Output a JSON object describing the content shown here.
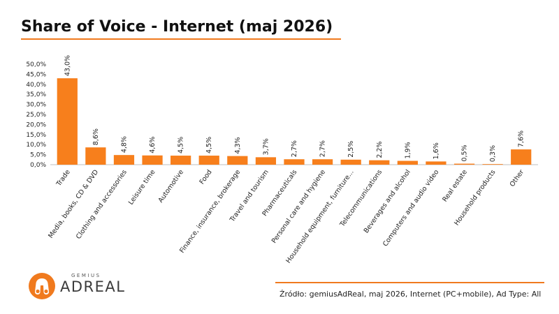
{
  "header": {
    "title": "Share of Voice - Internet (maj 2026)"
  },
  "chart_data": {
    "type": "bar",
    "categories": [
      "Trade",
      "Media, books, CD & DVD",
      "Clothing and accessories",
      "Leisure time",
      "Automotive",
      "Food",
      "Finance, insurance, brokerage",
      "Travel and tourism",
      "Pharmaceuticals",
      "Personal care and hygiene",
      "Household equipment, furniture...",
      "Telecommunications",
      "Beverages and alcohol",
      "Computers and audio video",
      "Real estate",
      "Household products",
      "Other"
    ],
    "values": [
      43.0,
      8.6,
      4.8,
      4.6,
      4.5,
      4.5,
      4.3,
      3.7,
      2.7,
      2.7,
      2.5,
      2.2,
      1.9,
      1.6,
      0.5,
      0.3,
      7.6
    ],
    "value_labels": [
      "43,0%",
      "8,6%",
      "4,8%",
      "4,6%",
      "4,5%",
      "4,5%",
      "4,3%",
      "3,7%",
      "2,7%",
      "2,7%",
      "2,5%",
      "2,2%",
      "1,9%",
      "1,6%",
      "0,5%",
      "0,3%",
      "7,6%"
    ],
    "yticks": [
      0,
      5,
      10,
      15,
      20,
      25,
      30,
      35,
      40,
      45,
      50
    ],
    "ytick_labels": [
      "0,0%",
      "5,0%",
      "10,0%",
      "15,0%",
      "20,0%",
      "25,0%",
      "30,0%",
      "35,0%",
      "40,0%",
      "45,0%",
      "50,0%"
    ],
    "ylim": [
      0,
      50
    ],
    "xlabel": "",
    "ylabel": "",
    "grid": false,
    "legend": "none",
    "bar_color": "#f77f1c"
  },
  "branding": {
    "logo_small": "GEMIUS",
    "logo_big": "ADREAL",
    "accent_color": "#f07a1e"
  },
  "footer": {
    "source": "Źródło: gemiusAdReal, maj 2026, Internet (PC+mobile), Ad Type: All"
  }
}
